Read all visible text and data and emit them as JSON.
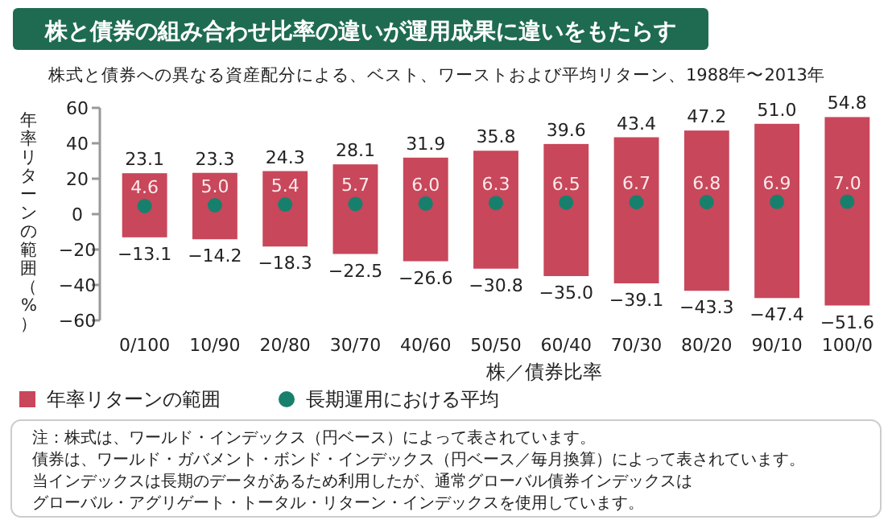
{
  "chart_data": {
    "type": "bar",
    "title": "株と債券の組み合わせ比率の違いが運用成果に違いをもたらす",
    "subtitle": "株式と債券への異なる資産配分による、ベスト、ワーストおよび平均リターン、1988年〜2013年",
    "xlabel": "株／債券比率",
    "ylabel": "年率リターンの範囲（%）",
    "categories": [
      "0/100",
      "10/90",
      "20/80",
      "30/70",
      "40/60",
      "50/50",
      "60/40",
      "70/30",
      "80/20",
      "90/10",
      "100/0"
    ],
    "series": [
      {
        "name": "年率リターンの範囲",
        "color": "#c8475a",
        "base": [
          -13.1,
          -14.2,
          -18.3,
          -22.5,
          -26.6,
          -30.8,
          -35.0,
          -39.1,
          -43.3,
          -47.4,
          -51.6
        ],
        "values": [
          36.2,
          37.5,
          42.6,
          50.6,
          58.5,
          66.6,
          74.6,
          82.5,
          90.5,
          98.4,
          106.4
        ]
      },
      {
        "name": "長期運用における平均",
        "type": "scatter",
        "marker": "circle",
        "color": "#17806d",
        "values": [
          4.6,
          5.0,
          5.4,
          5.7,
          6.0,
          6.3,
          6.5,
          6.7,
          6.8,
          6.9,
          7.0
        ],
        "value_labels": [
          "4.6",
          "5.0",
          "5.4",
          "5.7",
          "6.0",
          "6.3",
          "6.5",
          "6.7",
          "6.8",
          "6.9",
          "7.0"
        ]
      }
    ],
    "ylim": [
      -60,
      60
    ],
    "yticks": [
      -60,
      -40,
      -20,
      0,
      20,
      40,
      60
    ],
    "legend": "bottom",
    "annotations": [
      {
        "text": "23.1",
        "x": "0/100",
        "y": 23.1
      },
      {
        "text": "23.3",
        "x": "10/90",
        "y": 23.3
      },
      {
        "text": "24.3",
        "x": "20/80",
        "y": 24.3
      },
      {
        "text": "28.1",
        "x": "30/70",
        "y": 28.1
      },
      {
        "text": "31.9",
        "x": "40/60",
        "y": 31.9
      },
      {
        "text": "35.8",
        "x": "50/50",
        "y": 35.8
      },
      {
        "text": "39.6",
        "x": "60/40",
        "y": 39.6
      },
      {
        "text": "43.4",
        "x": "70/30",
        "y": 43.4
      },
      {
        "text": "47.2",
        "x": "80/20",
        "y": 47.2
      },
      {
        "text": "51.0",
        "x": "90/10",
        "y": 51.0
      },
      {
        "text": "54.8",
        "x": "100/0",
        "y": 54.8
      },
      {
        "text": "−13.1",
        "x": "0/100",
        "y": -13.1
      },
      {
        "text": "−14.2",
        "x": "10/90",
        "y": -14.2
      },
      {
        "text": "−18.3",
        "x": "20/80",
        "y": -18.3
      },
      {
        "text": "−22.5",
        "x": "30/70",
        "y": -22.5
      },
      {
        "text": "−26.6",
        "x": "40/60",
        "y": -26.6
      },
      {
        "text": "−30.8",
        "x": "50/50",
        "y": -30.8
      },
      {
        "text": "−35.0",
        "x": "60/40",
        "y": -35.0
      },
      {
        "text": "−39.1",
        "x": "70/30",
        "y": -39.1
      },
      {
        "text": "−43.3",
        "x": "80/20",
        "y": -43.3
      },
      {
        "text": "−47.4",
        "x": "90/10",
        "y": -47.4
      },
      {
        "text": "−51.6",
        "x": "100/0",
        "y": -51.6
      },
      "注：株式は、ワールド・インデックス（円ベース）によって表されています。",
      "債券は、ワールド・ガバメント・ボンド・インデックス（円ベース／毎月換算）によって表されています。",
      "当インデックスは長期のデータがあるため利用したが、通常グローバル債券インデックスは",
      "グローバル・アグリゲート・トータル・リターン・インデックスを使用しています。"
    ]
  }
}
